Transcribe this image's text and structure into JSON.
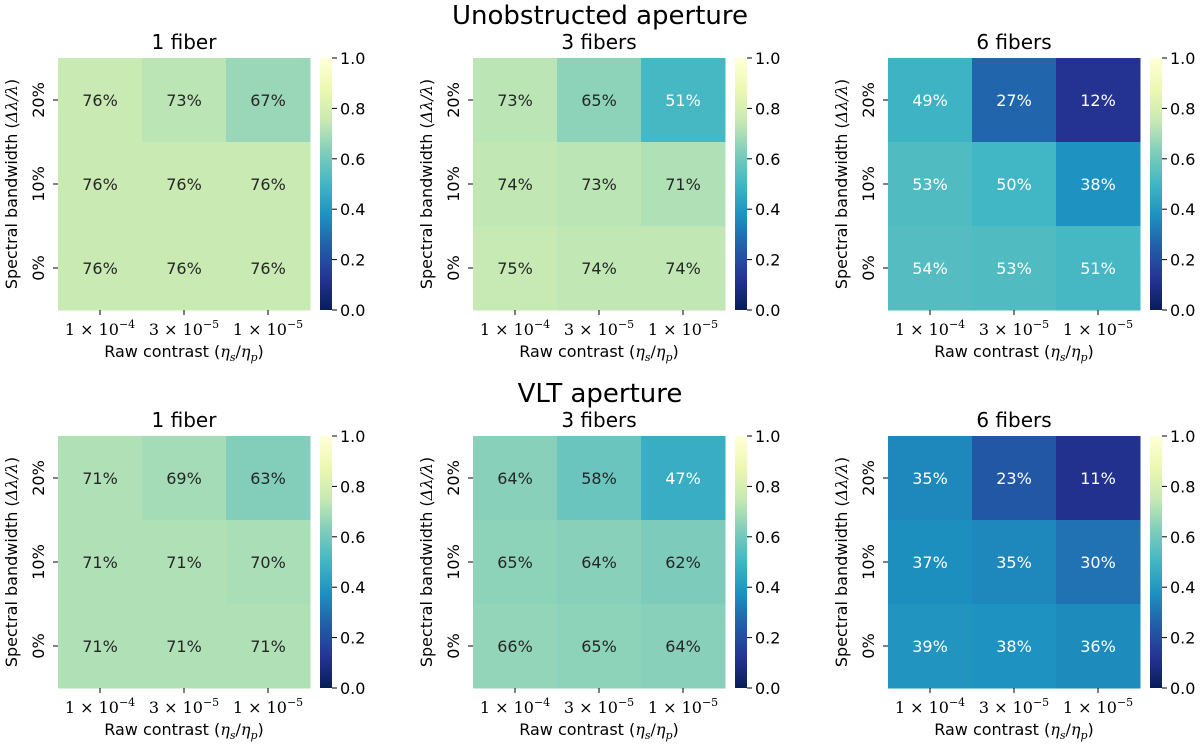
{
  "sections": [
    "Unobstructed aperture",
    "VLT aperture"
  ],
  "colorbar": {
    "ticks": [
      "0.0",
      "0.2",
      "0.4",
      "0.6",
      "0.8",
      "1.0"
    ],
    "range": [
      0,
      1
    ]
  },
  "axis_labels": {
    "x_text": "Raw contrast (",
    "x_math_a": "η",
    "x_sub_a": "s",
    "x_slash": "/",
    "x_math_b": "η",
    "x_sub_b": "p",
    "x_close": ")",
    "y_text": "Spectral bandwidth (",
    "y_math": "Δλ/λ",
    "y_close": ")"
  },
  "x_ticks": [
    {
      "mant": "1",
      "times": "×",
      "base": "10",
      "exp": "−4"
    },
    {
      "mant": "3",
      "times": "×",
      "base": "10",
      "exp": "−5"
    },
    {
      "mant": "1",
      "times": "×",
      "base": "10",
      "exp": "−5"
    }
  ],
  "y_ticks_top_to_bottom": [
    "20%",
    "10%",
    "0%"
  ],
  "chart_data": [
    {
      "type": "heatmap",
      "section": "Unobstructed aperture",
      "title": "1 fiber",
      "xlabel": "Raw contrast (ηs/ηp)",
      "ylabel": "Spectral bandwidth (Δλ/λ)",
      "x": [
        "1e-4",
        "3e-5",
        "1e-5"
      ],
      "y": [
        "20%",
        "10%",
        "0%"
      ],
      "values": [
        [
          0.76,
          0.73,
          0.67
        ],
        [
          0.76,
          0.76,
          0.76
        ],
        [
          0.76,
          0.76,
          0.76
        ]
      ],
      "labels": [
        [
          "76%",
          "73%",
          "67%"
        ],
        [
          "76%",
          "76%",
          "76%"
        ],
        [
          "76%",
          "76%",
          "76%"
        ]
      ]
    },
    {
      "type": "heatmap",
      "section": "Unobstructed aperture",
      "title": "3 fibers",
      "xlabel": "Raw contrast (ηs/ηp)",
      "ylabel": "Spectral bandwidth (Δλ/λ)",
      "x": [
        "1e-4",
        "3e-5",
        "1e-5"
      ],
      "y": [
        "20%",
        "10%",
        "0%"
      ],
      "values": [
        [
          0.73,
          0.65,
          0.51
        ],
        [
          0.74,
          0.73,
          0.71
        ],
        [
          0.75,
          0.74,
          0.74
        ]
      ],
      "labels": [
        [
          "73%",
          "65%",
          "51%"
        ],
        [
          "74%",
          "73%",
          "71%"
        ],
        [
          "75%",
          "74%",
          "74%"
        ]
      ]
    },
    {
      "type": "heatmap",
      "section": "Unobstructed aperture",
      "title": "6 fibers",
      "xlabel": "Raw contrast (ηs/ηp)",
      "ylabel": "Spectral bandwidth (Δλ/λ)",
      "x": [
        "1e-4",
        "3e-5",
        "1e-5"
      ],
      "y": [
        "20%",
        "10%",
        "0%"
      ],
      "values": [
        [
          0.49,
          0.27,
          0.12
        ],
        [
          0.53,
          0.5,
          0.38
        ],
        [
          0.54,
          0.53,
          0.51
        ]
      ],
      "labels": [
        [
          "49%",
          "27%",
          "12%"
        ],
        [
          "53%",
          "50%",
          "38%"
        ],
        [
          "54%",
          "53%",
          "51%"
        ]
      ]
    },
    {
      "type": "heatmap",
      "section": "VLT aperture",
      "title": "1 fiber",
      "xlabel": "Raw contrast (ηs/ηp)",
      "ylabel": "Spectral bandwidth (Δλ/λ)",
      "x": [
        "1e-4",
        "3e-5",
        "1e-5"
      ],
      "y": [
        "20%",
        "10%",
        "0%"
      ],
      "values": [
        [
          0.71,
          0.69,
          0.63
        ],
        [
          0.71,
          0.71,
          0.7
        ],
        [
          0.71,
          0.71,
          0.71
        ]
      ],
      "labels": [
        [
          "71%",
          "69%",
          "63%"
        ],
        [
          "71%",
          "71%",
          "70%"
        ],
        [
          "71%",
          "71%",
          "71%"
        ]
      ]
    },
    {
      "type": "heatmap",
      "section": "VLT aperture",
      "title": "3 fibers",
      "xlabel": "Raw contrast (ηs/ηp)",
      "ylabel": "Spectral bandwidth (Δλ/λ)",
      "x": [
        "1e-4",
        "3e-5",
        "1e-5"
      ],
      "y": [
        "20%",
        "10%",
        "0%"
      ],
      "values": [
        [
          0.64,
          0.58,
          0.47
        ],
        [
          0.65,
          0.64,
          0.62
        ],
        [
          0.66,
          0.65,
          0.64
        ]
      ],
      "labels": [
        [
          "64%",
          "58%",
          "47%"
        ],
        [
          "65%",
          "64%",
          "62%"
        ],
        [
          "66%",
          "65%",
          "64%"
        ]
      ]
    },
    {
      "type": "heatmap",
      "section": "VLT aperture",
      "title": "6 fibers",
      "xlabel": "Raw contrast (ηs/ηp)",
      "ylabel": "Spectral bandwidth (Δλ/λ)",
      "x": [
        "1e-4",
        "3e-5",
        "1e-5"
      ],
      "y": [
        "20%",
        "10%",
        "0%"
      ],
      "values": [
        [
          0.35,
          0.23,
          0.11
        ],
        [
          0.37,
          0.35,
          0.3
        ],
        [
          0.39,
          0.38,
          0.36
        ]
      ],
      "labels": [
        [
          "35%",
          "23%",
          "11%"
        ],
        [
          "37%",
          "35%",
          "30%"
        ],
        [
          "39%",
          "38%",
          "36%"
        ]
      ]
    }
  ]
}
